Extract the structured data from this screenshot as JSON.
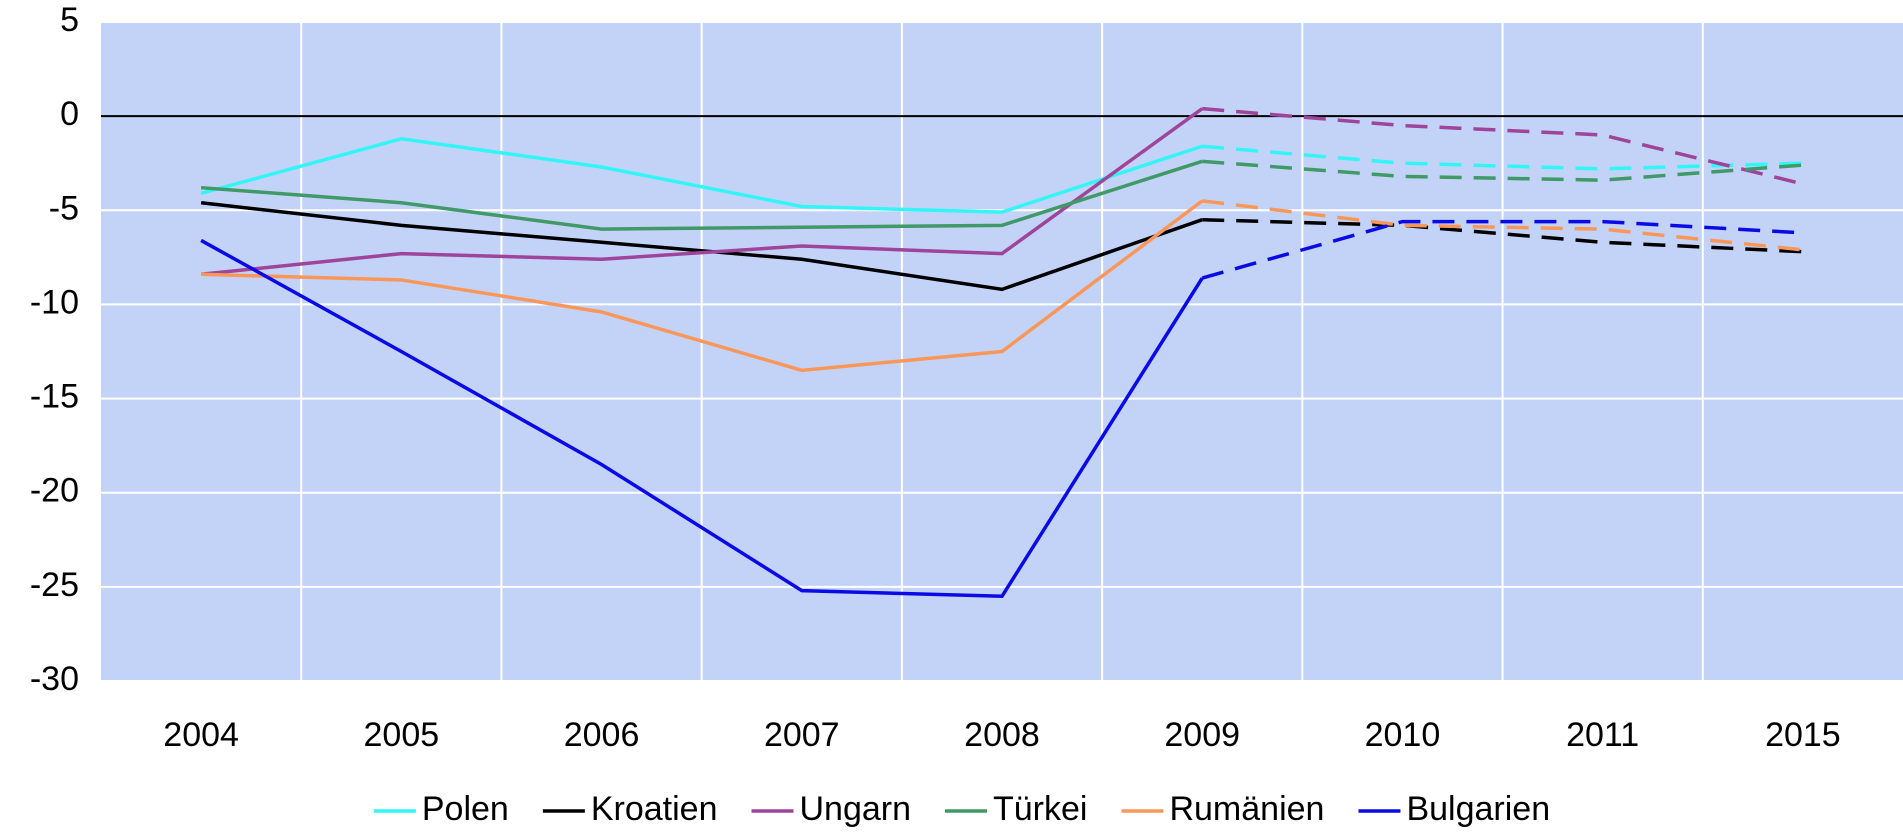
{
  "chart_data": {
    "type": "line",
    "categories": [
      "2004",
      "2005",
      "2006",
      "2007",
      "2008",
      "2009",
      "2010",
      "2011",
      "2015"
    ],
    "dashed_from": "2009",
    "series": [
      {
        "name": "Polen",
        "color": "#33f5f5",
        "values": [
          -4.1,
          -1.2,
          -2.7,
          -4.8,
          -5.1,
          -1.6,
          -2.5,
          -2.8,
          -2.5
        ]
      },
      {
        "name": "Kroatien",
        "color": "#000000",
        "values": [
          -4.6,
          -5.8,
          -6.7,
          -7.6,
          -9.2,
          -5.5,
          -5.8,
          -6.7,
          -7.2
        ]
      },
      {
        "name": "Ungarn",
        "color": "#9e449a",
        "values": [
          -8.4,
          -7.3,
          -7.6,
          -6.9,
          -7.3,
          0.4,
          -0.5,
          -1.0,
          -3.6
        ]
      },
      {
        "name": "Türkei",
        "color": "#3f9a68",
        "values": [
          -3.8,
          -4.6,
          -6.0,
          -5.9,
          -5.8,
          -2.4,
          -3.2,
          -3.4,
          -2.6
        ]
      },
      {
        "name": "Rumänien",
        "color": "#f9975a",
        "values": [
          -8.4,
          -8.7,
          -10.4,
          -13.5,
          -12.5,
          -4.5,
          -5.8,
          -6.0,
          -7.1
        ]
      },
      {
        "name": "Bulgarien",
        "color": "#0a0ae6",
        "values": [
          -6.6,
          -12.5,
          -18.5,
          -25.2,
          -25.5,
          -8.6,
          -5.6,
          -5.6,
          -6.2
        ]
      }
    ],
    "ylim": [
      -30,
      5
    ],
    "yticks": [
      -30,
      -25,
      -20,
      -15,
      -10,
      -5,
      0,
      5
    ],
    "grid": true
  }
}
